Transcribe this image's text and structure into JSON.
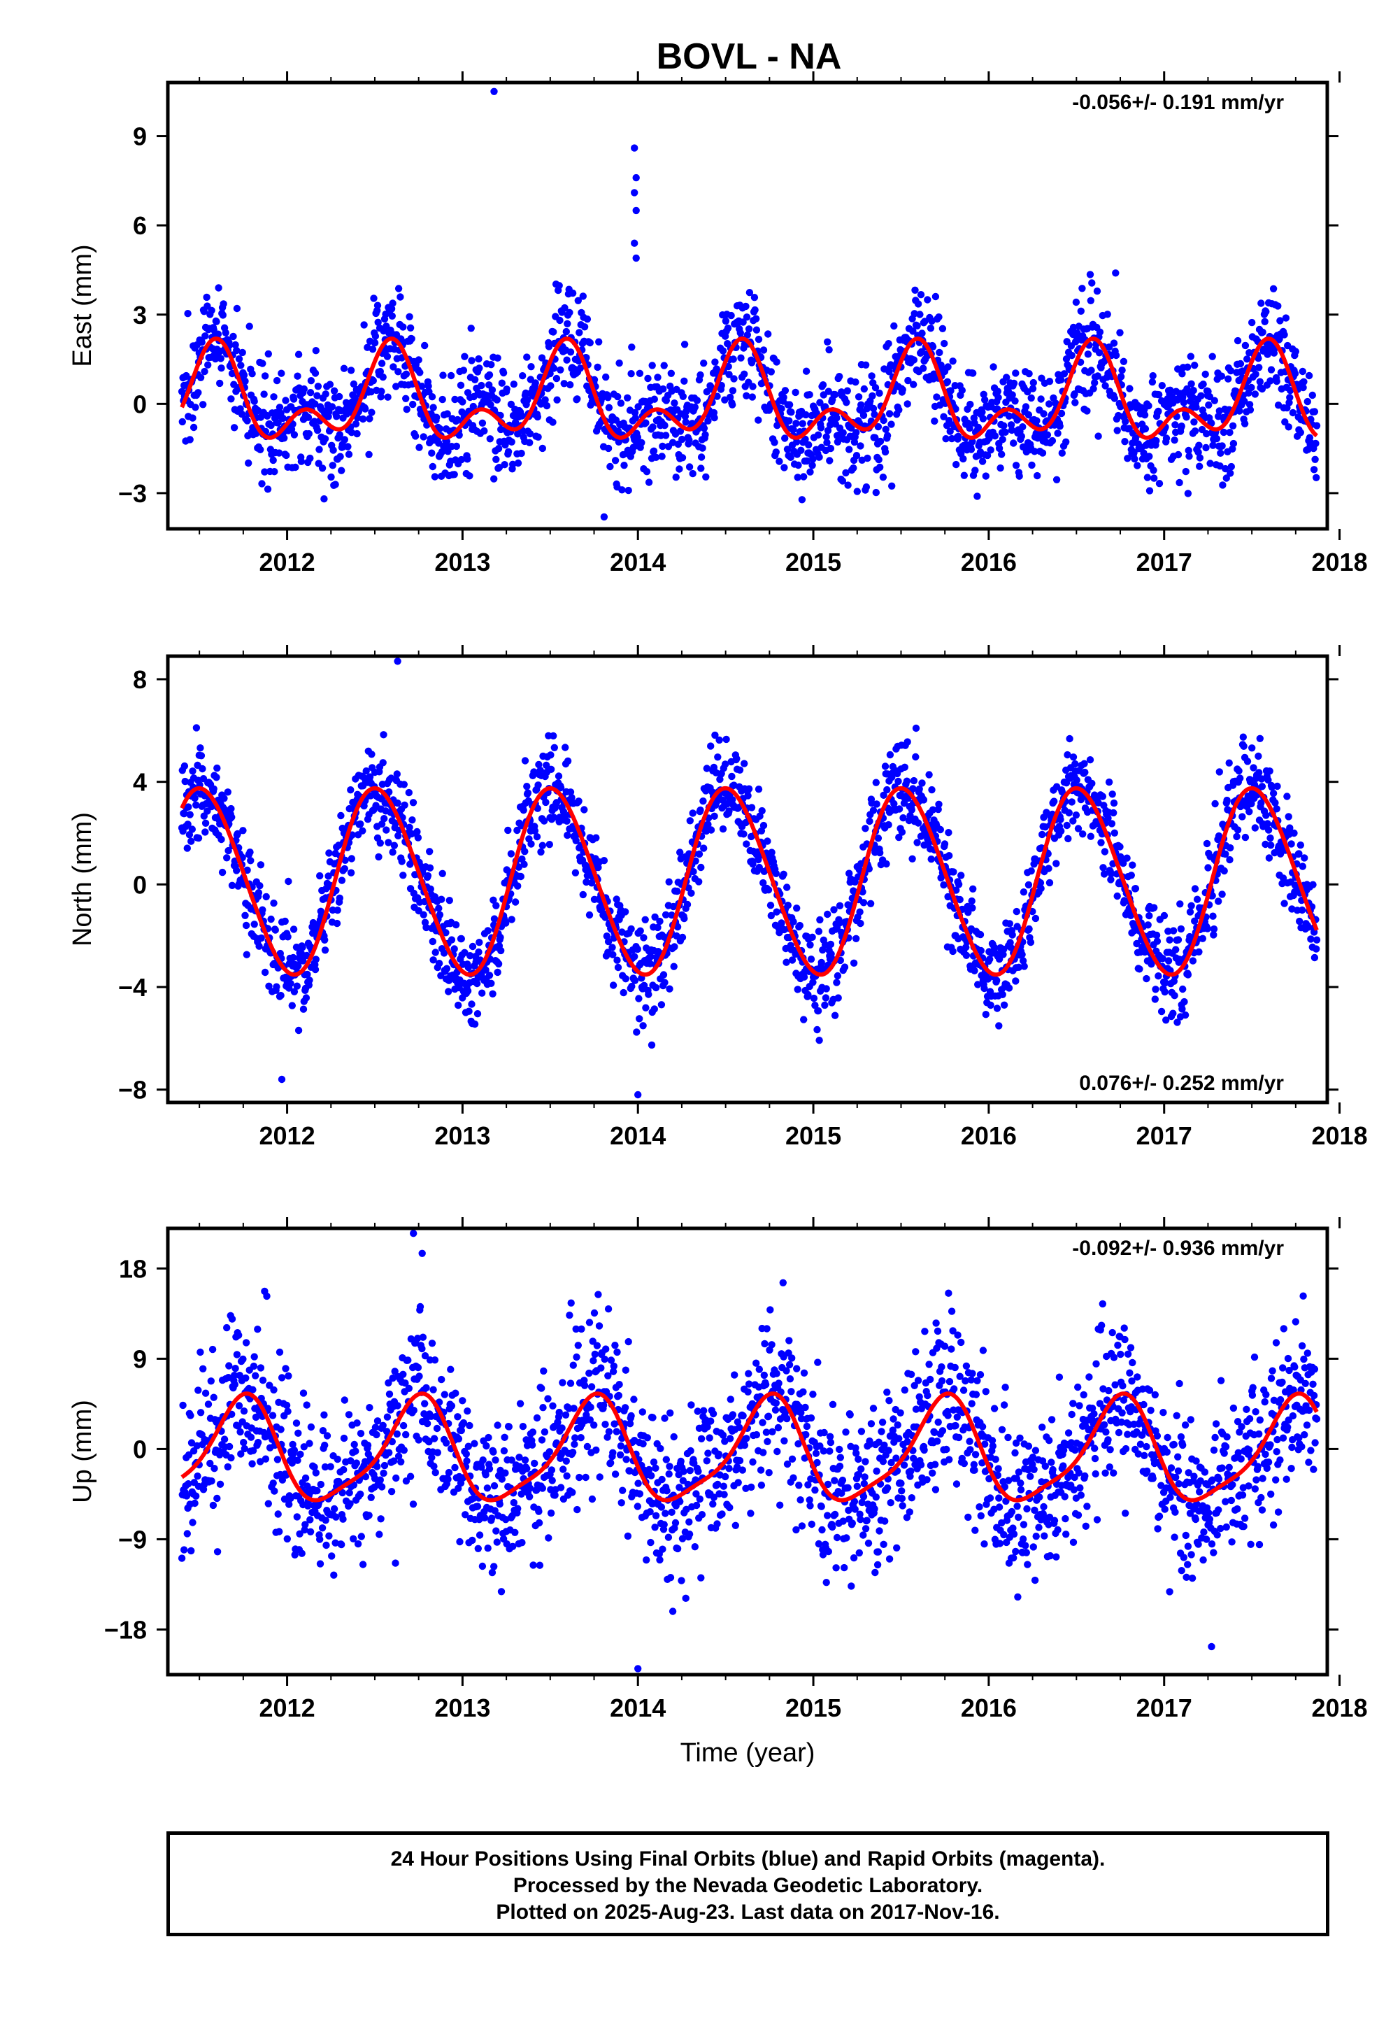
{
  "chart_data": [
    {
      "type": "scatter",
      "title": "BOVL - NA",
      "ylabel": "East (mm)",
      "xlabel": "",
      "rate": "-0.056+/- 0.191 mm/yr",
      "rate_position": "top-right",
      "xlim": [
        2011.32,
        2017.93
      ],
      "ylim": [
        -4.2,
        10.8
      ],
      "xticks": [
        2012,
        2013,
        2014,
        2015,
        2016,
        2017,
        2018
      ],
      "yticks": [
        -3,
        0,
        3,
        6,
        9
      ],
      "grid": false,
      "series": [
        {
          "color": "#0000ff",
          "marker": "circle",
          "model": {
            "mean": 0.1,
            "annual_amp": 1.2,
            "annual_peak": 0.58,
            "semi_amp": 0.9,
            "semi_peak": 0.1,
            "noise_sd": 0.95
          },
          "outliers": [
            [
              2013.18,
              10.5
            ],
            [
              2013.98,
              8.6
            ],
            [
              2013.99,
              7.6
            ],
            [
              2013.98,
              7.1
            ],
            [
              2013.99,
              6.5
            ],
            [
              2013.98,
              5.4
            ],
            [
              2013.99,
              4.9
            ]
          ],
          "t_start": 2011.4,
          "t_end": 2017.87
        },
        {
          "color": "#ff0000",
          "type": "line",
          "model": {
            "mean": 0.1,
            "annual_amp": 1.2,
            "annual_peak": 0.58,
            "semi_amp": 0.9,
            "semi_peak": 0.1
          },
          "t_start": 2011.4,
          "t_end": 2017.87
        }
      ]
    },
    {
      "type": "scatter",
      "title": "",
      "ylabel": "North (mm)",
      "xlabel": "",
      "rate": "0.076+/- 0.252 mm/yr",
      "rate_position": "bottom-right",
      "xlim": [
        2011.32,
        2017.93
      ],
      "ylim": [
        -8.5,
        8.9
      ],
      "xticks": [
        2012,
        2013,
        2014,
        2015,
        2016,
        2017,
        2018
      ],
      "yticks": [
        -8,
        -4,
        0,
        4,
        8
      ],
      "grid": false,
      "series": [
        {
          "color": "#0000ff",
          "marker": "circle",
          "model": {
            "mean": 0.1,
            "annual_amp": 3.6,
            "annual_peak": 0.52,
            "semi_amp": 0.25,
            "semi_peak": 0.4,
            "noise_sd": 0.95
          },
          "outliers": [
            [
              2012.63,
              8.7
            ],
            [
              2014.0,
              -8.2
            ],
            [
              2011.97,
              -7.6
            ]
          ],
          "t_start": 2011.4,
          "t_end": 2017.87
        },
        {
          "color": "#ff0000",
          "type": "line",
          "model": {
            "mean": 0.1,
            "annual_amp": 3.6,
            "annual_peak": 0.52,
            "semi_amp": 0.25,
            "semi_peak": 0.4
          },
          "t_start": 2011.4,
          "t_end": 2017.87
        }
      ]
    },
    {
      "type": "scatter",
      "title": "",
      "ylabel": "Up (mm)",
      "xlabel": "Time (year)",
      "rate": "-0.092+/- 0.936 mm/yr",
      "rate_position": "top-right",
      "xlim": [
        2011.32,
        2017.93
      ],
      "ylim": [
        -22.5,
        22.0
      ],
      "xticks": [
        2012,
        2013,
        2014,
        2015,
        2016,
        2017,
        2018
      ],
      "yticks": [
        -18,
        -9,
        0,
        9,
        18
      ],
      "grid": false,
      "series": [
        {
          "color": "#0000ff",
          "marker": "circle",
          "model": {
            "mean": -0.5,
            "annual_amp": 5.0,
            "annual_peak": 0.74,
            "semi_amp": 1.2,
            "semi_peak": 0.3,
            "noise_sd": 4.0
          },
          "outliers": [
            [
              2012.72,
              21.5
            ],
            [
              2012.77,
              19.5
            ],
            [
              2014.0,
              -21.9
            ],
            [
              2017.27,
              -19.7
            ]
          ],
          "t_start": 2011.4,
          "t_end": 2017.87
        },
        {
          "color": "#ff0000",
          "type": "line",
          "model": {
            "mean": -0.5,
            "annual_amp": 5.0,
            "annual_peak": 0.74,
            "semi_amp": 1.2,
            "semi_peak": 0.3
          },
          "t_start": 2011.4,
          "t_end": 2017.87
        }
      ]
    }
  ],
  "footer": {
    "line1": "24 Hour Positions Using Final Orbits (blue) and Rapid Orbits (magenta).",
    "line2": "Processed by the Nevada Geodetic Laboratory.",
    "line3": "Plotted on 2025-Aug-23. Last data on 2017-Nov-16."
  }
}
